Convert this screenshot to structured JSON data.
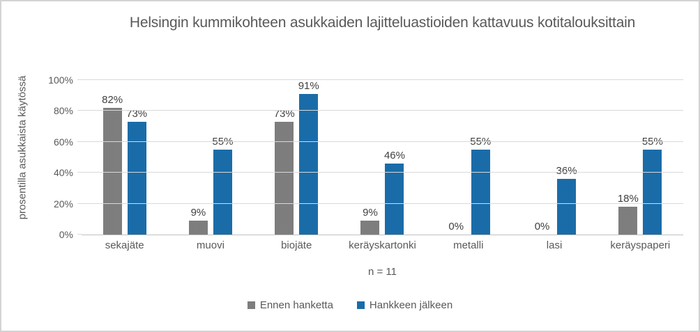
{
  "chart_data": {
    "type": "bar",
    "title": "Helsingin kummikohteen asukkaiden lajitteluastioiden kattavuus kotitalouksittain",
    "ylabel": "prosentilla asukkaista käytössä",
    "xlabel": "n = 11",
    "categories": [
      "sekajäte",
      "muovi",
      "biojäte",
      "keräyskartonki",
      "metalli",
      "lasi",
      "keräyspaperi"
    ],
    "series": [
      {
        "name": "Ennen hanketta",
        "color": "#7f7f7f",
        "pattern": true,
        "values": [
          82,
          9,
          73,
          9,
          0,
          0,
          18
        ]
      },
      {
        "name": "Hankkeen jälkeen",
        "color": "#1a6ca8",
        "pattern": false,
        "values": [
          73,
          55,
          91,
          46,
          55,
          36,
          55
        ]
      }
    ],
    "ylim": [
      0,
      100
    ],
    "yticks": [
      0,
      20,
      40,
      60,
      80,
      100
    ],
    "ytick_suffix": "%",
    "data_label_suffix": "%",
    "grid": true,
    "grid_color": "#d9d9d9",
    "axis_color": "#bfbfbf",
    "text_color": "#595959",
    "data_label_color": "#404040",
    "legend_position": "bottom"
  }
}
